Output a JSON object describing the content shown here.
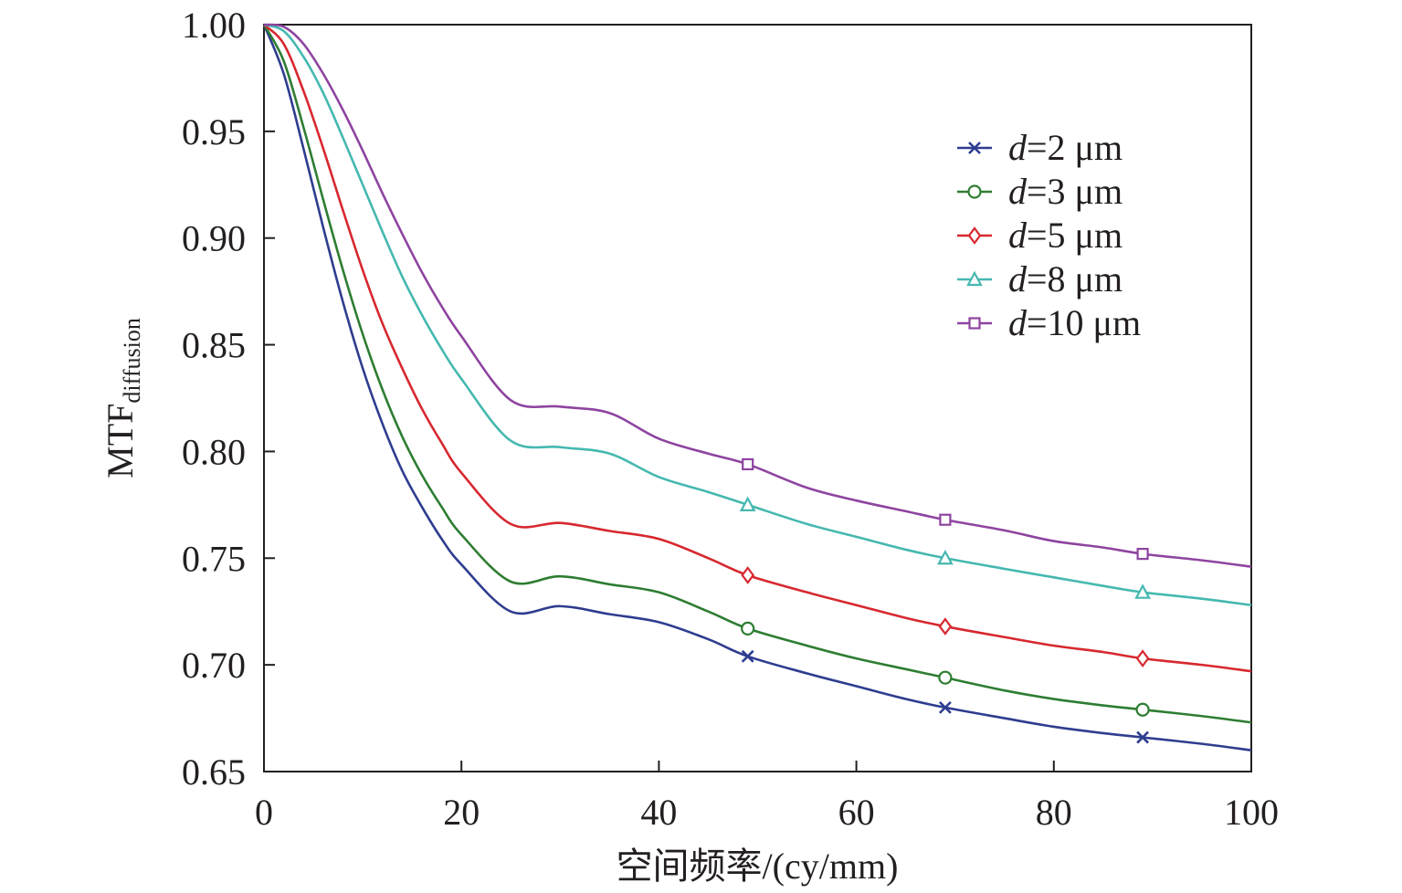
{
  "chart_data": {
    "type": "line",
    "xlabel": "空间频率/(cy/mm)",
    "ylabel": "MTF",
    "ylabel_sub": "diffusion",
    "xlim": [
      0,
      100
    ],
    "ylim": [
      0.65,
      1.0
    ],
    "xticks": [
      0,
      20,
      40,
      60,
      80,
      100
    ],
    "xtick_labels": [
      "0",
      "20",
      "40",
      "60",
      "80",
      "100"
    ],
    "yticks": [
      0.65,
      0.7,
      0.75,
      0.8,
      0.85,
      0.9,
      0.95,
      1.0
    ],
    "ytick_labels": [
      "0.65",
      "0.70",
      "0.75",
      "0.80",
      "0.85",
      "0.90",
      "0.95",
      "1.00"
    ],
    "grid": false,
    "legend_position": "top-right",
    "x": [
      0,
      2,
      4,
      6,
      8,
      10,
      12,
      14,
      16,
      18,
      20,
      25,
      30,
      35,
      40,
      45,
      49,
      55,
      60,
      65,
      69,
      75,
      80,
      85,
      89,
      95,
      100
    ],
    "series": [
      {
        "name_var": "d",
        "name_rest": "=2 μm",
        "color": "#2e3d8f",
        "marker": "x",
        "values": [
          1.0,
          0.977,
          0.942,
          0.905,
          0.87,
          0.839,
          0.813,
          0.791,
          0.774,
          0.759,
          0.747,
          0.725,
          0.74,
          0.73,
          0.72,
          0.712,
          0.704,
          0.696,
          0.69,
          0.684,
          0.68,
          0.675,
          0.671,
          0.668,
          0.666,
          0.663,
          0.66
        ]
      },
      {
        "name_var": "d",
        "name_rest": "=3 μm",
        "color": "#2e7d32",
        "marker": "circle",
        "values": [
          1.0,
          0.983,
          0.952,
          0.918,
          0.885,
          0.855,
          0.829,
          0.807,
          0.789,
          0.774,
          0.761,
          0.739,
          0.754,
          0.744,
          0.734,
          0.725,
          0.717,
          0.709,
          0.703,
          0.698,
          0.694,
          0.688,
          0.684,
          0.681,
          0.679,
          0.676,
          0.673
        ]
      },
      {
        "name_var": "d",
        "name_rest": "=5 μm",
        "color": "#d7282f",
        "marker": "diamond",
        "values": [
          1.0,
          0.991,
          0.969,
          0.942,
          0.913,
          0.885,
          0.86,
          0.839,
          0.82,
          0.804,
          0.79,
          0.766,
          0.778,
          0.767,
          0.759,
          0.75,
          0.742,
          0.734,
          0.728,
          0.722,
          0.718,
          0.713,
          0.709,
          0.706,
          0.703,
          0.7,
          0.697
        ]
      },
      {
        "name_var": "d",
        "name_rest": "=8 μm",
        "color": "#45b8b0",
        "marker": "triangle",
        "values": [
          1.0,
          0.997,
          0.985,
          0.968,
          0.947,
          0.925,
          0.903,
          0.882,
          0.864,
          0.848,
          0.834,
          0.805,
          0.815,
          0.799,
          0.788,
          0.781,
          0.775,
          0.766,
          0.76,
          0.754,
          0.75,
          0.745,
          0.741,
          0.737,
          0.734,
          0.731,
          0.728
        ]
      },
      {
        "name_var": "d",
        "name_rest": "=10 μm",
        "color": "#8e44a0",
        "marker": "square",
        "values": [
          1.0,
          0.999,
          0.991,
          0.977,
          0.96,
          0.941,
          0.921,
          0.902,
          0.884,
          0.868,
          0.854,
          0.824,
          0.834,
          0.818,
          0.806,
          0.799,
          0.794,
          0.783,
          0.777,
          0.772,
          0.768,
          0.763,
          0.758,
          0.755,
          0.752,
          0.749,
          0.746
        ]
      }
    ],
    "marker_x": [
      49,
      69,
      89
    ]
  }
}
